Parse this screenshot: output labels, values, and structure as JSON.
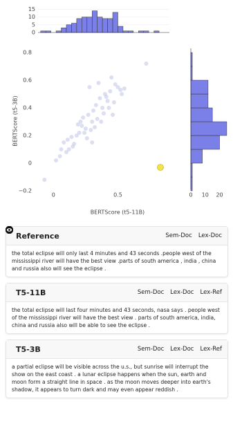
{
  "chart_data": [
    {
      "type": "scatter",
      "xlabel": "BERTScore (t5-11B)",
      "ylabel": "BERTScore (t5-3B)",
      "x": [
        0.28,
        0.35,
        0.4,
        0.45,
        0.5,
        0.52,
        0.55,
        0.42,
        0.38,
        0.33,
        0.3,
        0.25,
        0.22,
        0.2,
        0.18,
        0.15,
        0.12,
        0.1,
        0.08,
        0.05,
        0.27,
        0.31,
        0.36,
        0.44,
        0.47,
        0.26,
        0.23,
        0.19,
        0.16,
        0.29,
        0.34,
        0.39,
        0.41,
        0.37,
        0.32,
        0.24,
        0.21,
        0.14,
        0.11,
        0.06,
        0.48,
        0.53,
        0.43,
        0.72,
        -0.07,
        0.02,
        0.3,
        0.46
      ],
      "y": [
        0.55,
        0.58,
        0.5,
        0.62,
        0.55,
        0.53,
        0.54,
        0.45,
        0.4,
        0.42,
        0.3,
        0.25,
        0.27,
        0.22,
        0.2,
        0.12,
        0.1,
        0.08,
        0.15,
        0.05,
        0.35,
        0.38,
        0.47,
        0.52,
        0.44,
        0.18,
        0.33,
        0.28,
        0.14,
        0.24,
        0.32,
        0.36,
        0.48,
        0.3,
        0.26,
        0.22,
        0.3,
        0.19,
        0.17,
        0.1,
        0.57,
        0.5,
        0.4,
        0.72,
        -0.12,
        0.02,
        0.15,
        0.35
      ],
      "color": "#c5c8ea",
      "highlight": {
        "x": 0.83,
        "y": -0.03,
        "color": "#f2e34a"
      },
      "xlim": [
        -0.12,
        0.9
      ],
      "ylim": [
        -0.22,
        0.83
      ],
      "xticks": [
        0,
        0.5
      ],
      "yticks": [
        {
          "value": -0.2,
          "label": "−0.2"
        },
        0,
        0.2,
        0.4,
        0.6,
        0.8
      ]
    },
    {
      "type": "histogram",
      "orientation": "vertical",
      "color": "#7b7fe8",
      "bins": [
        -0.1,
        -0.06,
        -0.02,
        0.02,
        0.06,
        0.1,
        0.14,
        0.18,
        0.22,
        0.26,
        0.3,
        0.34,
        0.38,
        0.42,
        0.46,
        0.5,
        0.54,
        0.58,
        0.62,
        0.66,
        0.7,
        0.74,
        0.78,
        0.82,
        0.86
      ],
      "counts": [
        1,
        1,
        0,
        1,
        3,
        5,
        6,
        9,
        10,
        10,
        14,
        10,
        9,
        9,
        13,
        4,
        1,
        1,
        0,
        1,
        1,
        0,
        1,
        0
      ],
      "ylim": [
        0,
        21
      ],
      "yticks": [
        0,
        5,
        10,
        15
      ]
    },
    {
      "type": "histogram",
      "orientation": "horizontal",
      "color": "#7b7fe8",
      "bins": [
        -0.2,
        -0.1,
        0,
        0.1,
        0.2,
        0.3,
        0.4,
        0.5,
        0.6,
        0.7,
        0.8
      ],
      "counts": [
        1,
        1,
        8,
        20,
        25,
        15,
        12,
        12,
        1,
        1
      ],
      "xlim": [
        0,
        26
      ],
      "xticks": [
        0,
        10,
        20
      ]
    }
  ],
  "cards": [
    {
      "title": "Reference",
      "badges": [
        "Sem-Doc",
        "Lex-Doc"
      ],
      "text": "the total eclipse will only last 4 minutes and 43 seconds .people west of the mississippi river will have the best view .parts of south america , india , china and russia also will see the eclipse ."
    },
    {
      "title": "T5-11B",
      "badges": [
        "Sem-Doc",
        "Lex-Doc",
        "Lex-Ref"
      ],
      "text": "the total eclipse will last four minutes and 43 seconds, nasa says . people west of the mississippi river will have the best view . parts of south america, india, china and russia also will be able to see the eclipse ."
    },
    {
      "title": "T5-3B",
      "badges": [
        "Sem-Doc",
        "Lex-Doc",
        "Lex-Ref"
      ],
      "text": "a partial eclipse will be visible across the u.s., but sunrise will interrupt the show on the east coast . a lunar eclipse happens when the sun, earth and moon form a straight line in space . as the moon moves deeper into earth's shadow, it appears to turn dark and may even appear reddish ."
    }
  ]
}
